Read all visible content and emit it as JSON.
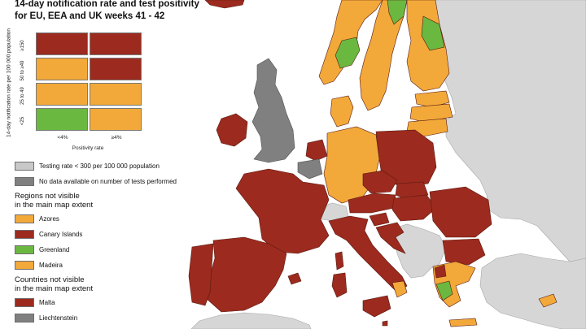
{
  "title_line1": "14-day notification rate and test positivity",
  "title_line2": "for EU, EEA and UK weeks 41 - 42",
  "colors": {
    "dark_red": "#9c2a1e",
    "orange": "#f2a93a",
    "green": "#6bb841",
    "light_grey": "#c8c8c8",
    "dark_grey": "#808080",
    "non_eu": "#d6d6d6",
    "sea": "#ffffff",
    "border": "#5a1a12"
  },
  "matrix": {
    "y_axis_label": "14-day notification rate per 100 000 population",
    "x_axis_label": "Positivity rate",
    "row_labels": [
      "≥150",
      "50 to ≥49",
      "25 to 49",
      "<25"
    ],
    "col_labels": [
      "<4%",
      "≥4%"
    ],
    "cells": [
      [
        "dark_red",
        "dark_red"
      ],
      [
        "orange",
        "dark_red"
      ],
      [
        "orange",
        "orange"
      ],
      [
        "green",
        "orange"
      ]
    ]
  },
  "legend": {
    "testing_rate": "Testing rate < 300 per 100 000 population",
    "no_data": "No data available on number of tests performed",
    "regions_heading_line1": "Regions not visible",
    "regions_heading_line2": "in the main map extent",
    "regions": [
      {
        "label": "Azores",
        "color": "orange"
      },
      {
        "label": "Canary Islands",
        "color": "dark_red"
      },
      {
        "label": "Greenland",
        "color": "green"
      },
      {
        "label": "Madeira",
        "color": "orange"
      }
    ],
    "countries_heading_line1": "Countries not visible",
    "countries_heading_line2": "in the main map extent",
    "countries": [
      {
        "label": "Malta",
        "color": "dark_red"
      },
      {
        "label": "Liechtenstein",
        "color": "dark_grey"
      }
    ]
  }
}
